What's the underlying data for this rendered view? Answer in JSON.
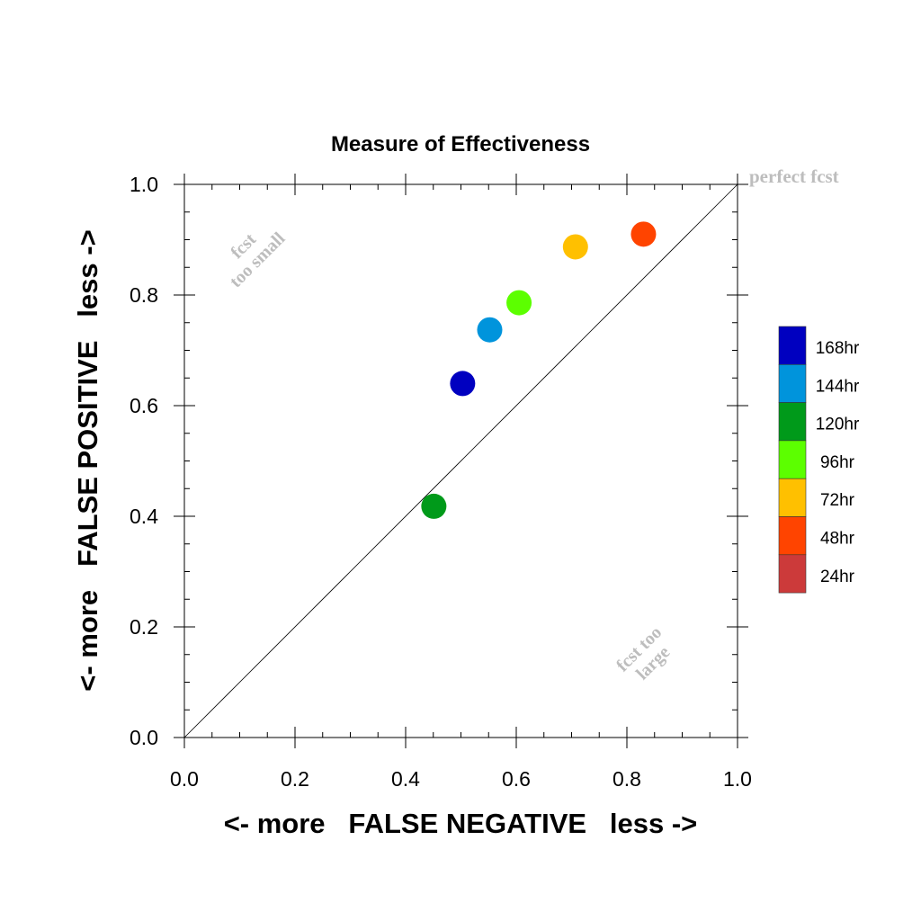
{
  "chart_data": {
    "type": "scatter",
    "title": "Measure of Effectiveness",
    "xlabel": "<- more   FALSE NEGATIVE   less ->",
    "ylabel": "<- more   FALSE POSITIVE   less ->",
    "xlim": [
      0.0,
      1.0
    ],
    "ylim": [
      0.0,
      1.0
    ],
    "x_ticks": [
      "0.0",
      "0.2",
      "0.4",
      "0.6",
      "0.8",
      "1.0"
    ],
    "y_ticks": [
      "0.0",
      "0.2",
      "0.4",
      "0.6",
      "0.8",
      "1.0"
    ],
    "grid": false,
    "diagonal_reference_line": true,
    "legend_position": "right",
    "annotations": {
      "perfect": "perfect fcst",
      "too_small_line1": "fcst",
      "too_small_line2": "too small",
      "too_large_line1": "fcst too",
      "too_large_line2": "large"
    },
    "series": [
      {
        "name": "168hr",
        "color": "#0000c0",
        "x": 0.503,
        "y": 0.64
      },
      {
        "name": "144hr",
        "color": "#0094dc",
        "x": 0.552,
        "y": 0.737
      },
      {
        "name": "120hr",
        "color": "#009a1a",
        "x": 0.451,
        "y": 0.418
      },
      {
        "name": "96hr",
        "color": "#5cff00",
        "x": 0.605,
        "y": 0.786
      },
      {
        "name": "72hr",
        "color": "#ffc000",
        "x": 0.707,
        "y": 0.887
      },
      {
        "name": "48hr",
        "color": "#ff4400",
        "x": 0.83,
        "y": 0.91
      },
      {
        "name": "24hr",
        "color": "#cc3a3a",
        "x": null,
        "y": null
      }
    ]
  }
}
